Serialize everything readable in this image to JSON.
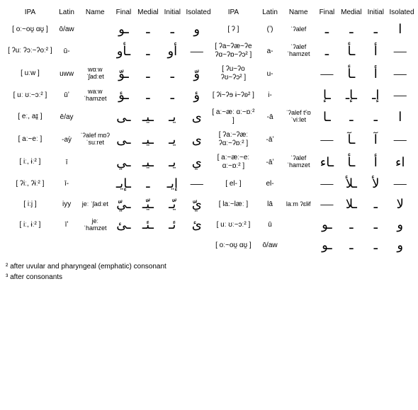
{
  "headers": {
    "ipa": "IPA",
    "latin": "Latin",
    "name": "Name",
    "final": "Final",
    "medial": "Medial",
    "initial": "Initial",
    "isolated": "Isolated"
  },
  "rows": [
    {
      "l_ipa": "[ oː~oʊ̯ ɑʊ̯ ]",
      "l_latin": "ō/aw",
      "l_name": "",
      "l_final": "ـو",
      "l_medial": "ـ",
      "l_initial": "ـ",
      "l_isolated": "و",
      "r_ipa": "[ ʔ ]",
      "r_latin": "(ʼ)",
      "r_name": "ˈʔalef",
      "r_final": "ـ",
      "r_medial": "ـ",
      "r_initial": "ـ",
      "r_isolated": "ا"
    },
    {
      "l_ipa": "[ ʔuː ʔɔː~ʔoː² ]",
      "l_latin": "ū-",
      "l_name": "",
      "l_final": "ـأو",
      "l_medial": "ـ",
      "l_initial": "أو",
      "l_isolated": "—",
      "r_ipa": "[ ʔa~ʔæ~ʔe ʔɑ~ʔɒ~ʔɔ² ]",
      "r_latin": "a-",
      "r_name": "ˈʔalef ˈhamzet",
      "r_final": "ـ",
      "r_medial": "ـأ",
      "r_initial": "أ",
      "r_isolated": "—"
    },
    {
      "l_ipa": "[ uːw ]",
      "l_latin": "uww",
      "l_name": "wɑːw ˈʃadːet",
      "l_final": "ـوّ",
      "l_medial": "ـ",
      "l_initial": "ـ",
      "l_isolated": "وّ",
      "r_ipa": "[ ʔu~ʔo ʔʊ~ʔɔ² ]",
      "r_latin": "u-",
      "r_name": "",
      "r_final": "—",
      "r_medial": "ـأ",
      "r_initial": "أ",
      "r_isolated": "—"
    },
    {
      "l_ipa": "[ uː ʊː~ɔː² ]",
      "l_latin": "ūʼ",
      "l_name": "waːw ˈhamzet",
      "l_final": "ـؤ",
      "l_medial": "ـ",
      "l_initial": "ـ",
      "l_isolated": "ؤ",
      "r_ipa": "[ ʔi~ʔɘ ɨ~ʔʚ² ]",
      "r_latin": "i-",
      "r_name": "",
      "r_final": "ـإ",
      "r_medial": "ـإـ",
      "r_initial": "إـ",
      "r_isolated": "—"
    },
    {
      "l_ipa": "[ eː, aɪ̯ ]",
      "l_latin": "ē/ay",
      "l_name": "",
      "l_final": "ـى",
      "l_medial": "ـيـ",
      "l_initial": "يـ",
      "l_isolated": "ى",
      "r_ipa": "[ aː~æː ɑː~ɒː² ]",
      "r_latin": "-ā",
      "r_name": "ˈʔalef tˤɒˈviːlet",
      "r_final": "ـا",
      "r_medial": "ـ",
      "r_initial": "ـ",
      "r_isolated": "ا"
    },
    {
      "l_ipa": "[ aː~eː ]",
      "l_latin": "-aỳ",
      "l_name": "ˈʔalef mɒʔˈsuːret",
      "l_final": "ـى",
      "l_medial": "ـيـ",
      "l_initial": "يـ",
      "l_isolated": "ى",
      "r_ipa": "[ ʔaː~ʔæː ʔɑː~ʔɒː² ]",
      "r_latin": "-āʼ",
      "r_name": "",
      "r_final": "—",
      "r_medial": "ـآ",
      "r_initial": "آ",
      "r_isolated": "—"
    },
    {
      "l_ipa": "[ iː, ɨː² ]",
      "l_latin": "ī",
      "l_name": "",
      "l_final": "ـي",
      "l_medial": "ـيـ",
      "l_initial": "يـ",
      "l_isolated": "ي",
      "r_ipa": "[ aː~æː~eː ɑː~ɒː² ]",
      "r_latin": "-āʼ",
      "r_name": "ˈʔalef ˈhamzet",
      "r_final": "ـاء",
      "r_medial": "ـأ",
      "r_initial": "أ",
      "r_isolated": "اء"
    },
    {
      "l_ipa": "[ ʔiː, ʔɨː² ]",
      "l_latin": "ī-",
      "l_name": "",
      "l_final": "ـإيـ",
      "l_medial": "ـ",
      "l_initial": "إيـ",
      "l_isolated": "—",
      "r_ipa": "[ el- ]",
      "r_latin": "el-",
      "r_name": "",
      "r_final": "—",
      "r_medial": "ـلأ",
      "r_initial": "لأ",
      "r_isolated": "—"
    },
    {
      "l_ipa": "[ iːj ]",
      "l_latin": "iyy",
      "l_name": "jeː ˈʃadːet",
      "l_final": "ـيّ",
      "l_medial": "ـيّـ",
      "l_initial": "يّـ",
      "l_isolated": "يّ",
      "r_ipa": "[ laː~læː ]",
      "r_latin": "lā",
      "r_name": "laːm ʔɛlɨf",
      "r_final": "—",
      "r_medial": "ـلا",
      "r_initial": "ـ",
      "r_isolated": "لا"
    },
    {
      "l_ipa": "[ iː, ɨː² ]",
      "l_latin": "īʼ",
      "l_name": "jeː ˈhamzet",
      "l_final": "ـئ",
      "l_medial": "ـئـ",
      "l_initial": "ئـ",
      "l_isolated": "ئ",
      "r_ipa": "[ uː ʊː~ɔː² ]",
      "r_latin": "ū",
      "r_name": "",
      "r_final": "ـو",
      "r_medial": "ـ",
      "r_initial": "ـ",
      "r_isolated": "و"
    },
    {
      "l_ipa": "",
      "l_latin": "",
      "l_name": "",
      "l_final": "",
      "l_medial": "",
      "l_initial": "",
      "l_isolated": "",
      "r_ipa": "[ oː~oʊ̯ ɑʊ̯ ]",
      "r_latin": "ō/aw",
      "r_name": "",
      "r_final": "ـو",
      "r_medial": "ـ",
      "r_initial": "ـ",
      "r_isolated": "و"
    }
  ],
  "footnotes": {
    "f1": "² after uvular and pharyngeal (emphatic) consonant",
    "f2": "³ after consonants"
  },
  "style": {
    "background_color": "#ffffff",
    "text_color": "#000000",
    "header_fontsize": 10,
    "body_fontsize": 11,
    "glyph_fontsize": 18
  }
}
